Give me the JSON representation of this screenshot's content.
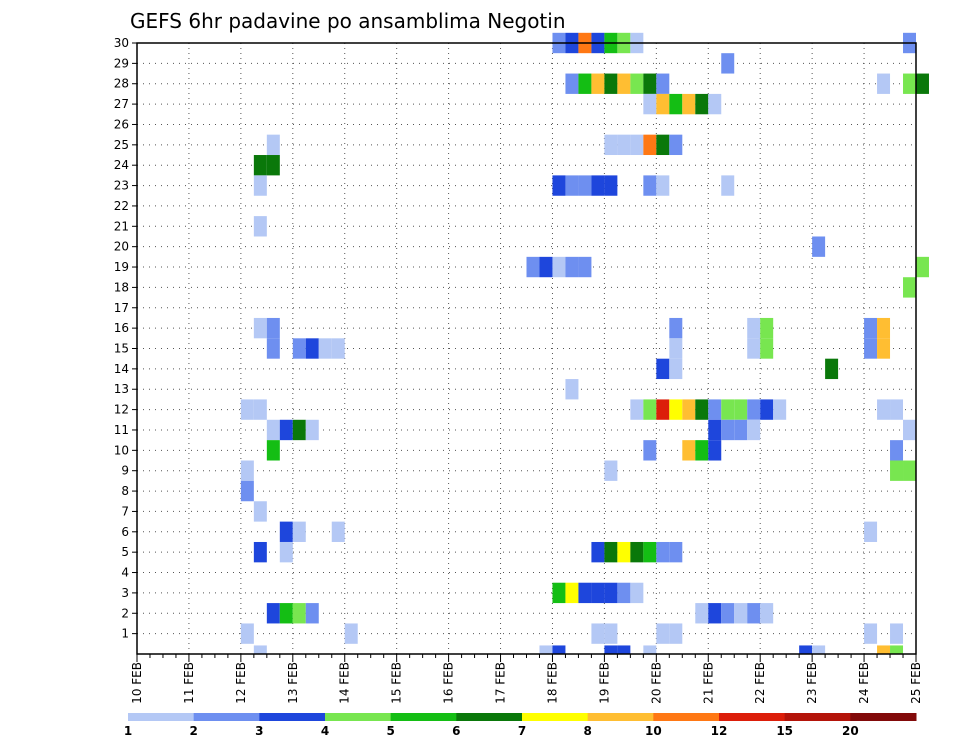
{
  "chart_data": {
    "type": "heatmap",
    "title": "GEFS 6hr padavine po ansamblima Negotin",
    "xlabel": "",
    "ylabel": "",
    "x_tick_labels": [
      "10 FEB",
      "11 FEB",
      "12 FEB",
      "13 FEB",
      "14 FEB",
      "15 FEB",
      "16 FEB",
      "17 FEB",
      "18 FEB",
      "19 FEB",
      "20 FEB",
      "21 FEB",
      "22 FEB",
      "23 FEB",
      "24 FEB",
      "25 FEB"
    ],
    "xlim_days": [
      10,
      25
    ],
    "time_step_hours": 6,
    "y_tick_labels": [
      "1",
      "2",
      "3",
      "4",
      "5",
      "6",
      "7",
      "8",
      "9",
      "10",
      "11",
      "12",
      "13",
      "14",
      "15",
      "16",
      "17",
      "18",
      "19",
      "20",
      "21",
      "22",
      "23",
      "24",
      "25",
      "26",
      "27",
      "28",
      "29",
      "30"
    ],
    "ylim": [
      0,
      30
    ],
    "grid": true,
    "legend_placement": "bottom",
    "colorbar": {
      "colors": [
        "#b4c8f5",
        "#6e8ff0",
        "#1e46dc",
        "#78e650",
        "#14be14",
        "#0a780a",
        "#ffff00",
        "#ffbe32",
        "#ff7814",
        "#dc1e0a",
        "#b4140a",
        "#820a0a"
      ],
      "labels": [
        "1",
        "2",
        "3",
        "4",
        "5",
        "6",
        "7",
        "8",
        "10",
        "12",
        "15",
        "20"
      ]
    },
    "cells": [
      {
        "m": 30,
        "d": 18.0,
        "v": 2
      },
      {
        "m": 30,
        "d": 18.25,
        "v": 3
      },
      {
        "m": 30,
        "d": 18.5,
        "v": 9
      },
      {
        "m": 30,
        "d": 18.75,
        "v": 3
      },
      {
        "m": 30,
        "d": 19.0,
        "v": 5
      },
      {
        "m": 30,
        "d": 19.25,
        "v": 4
      },
      {
        "m": 30,
        "d": 19.5,
        "v": 1
      },
      {
        "m": 30,
        "d": 24.75,
        "v": 2
      },
      {
        "m": 29,
        "d": 21.25,
        "v": 2
      },
      {
        "m": 28,
        "d": 18.25,
        "v": 2
      },
      {
        "m": 28,
        "d": 18.5,
        "v": 5
      },
      {
        "m": 28,
        "d": 18.75,
        "v": 8
      },
      {
        "m": 28,
        "d": 19.0,
        "v": 6
      },
      {
        "m": 28,
        "d": 19.25,
        "v": 8
      },
      {
        "m": 28,
        "d": 19.5,
        "v": 4
      },
      {
        "m": 28,
        "d": 19.75,
        "v": 6
      },
      {
        "m": 28,
        "d": 20.0,
        "v": 2
      },
      {
        "m": 28,
        "d": 24.25,
        "v": 1
      },
      {
        "m": 28,
        "d": 24.75,
        "v": 4
      },
      {
        "m": 28,
        "d": 25.0,
        "v": 6
      },
      {
        "m": 27,
        "d": 19.75,
        "v": 1
      },
      {
        "m": 27,
        "d": 20.0,
        "v": 8
      },
      {
        "m": 27,
        "d": 20.25,
        "v": 5
      },
      {
        "m": 27,
        "d": 20.5,
        "v": 8
      },
      {
        "m": 27,
        "d": 20.75,
        "v": 6
      },
      {
        "m": 27,
        "d": 21.0,
        "v": 1
      },
      {
        "m": 25,
        "d": 12.5,
        "v": 1
      },
      {
        "m": 25,
        "d": 19.0,
        "v": 1
      },
      {
        "m": 25,
        "d": 19.25,
        "v": 1
      },
      {
        "m": 25,
        "d": 19.5,
        "v": 1
      },
      {
        "m": 25,
        "d": 19.75,
        "v": 9
      },
      {
        "m": 25,
        "d": 20.0,
        "v": 6
      },
      {
        "m": 25,
        "d": 20.25,
        "v": 2
      },
      {
        "m": 24,
        "d": 12.25,
        "v": 6
      },
      {
        "m": 24,
        "d": 12.5,
        "v": 6
      },
      {
        "m": 23,
        "d": 12.25,
        "v": 1
      },
      {
        "m": 23,
        "d": 18.0,
        "v": 3
      },
      {
        "m": 23,
        "d": 18.25,
        "v": 2
      },
      {
        "m": 23,
        "d": 18.5,
        "v": 2
      },
      {
        "m": 23,
        "d": 18.75,
        "v": 3
      },
      {
        "m": 23,
        "d": 19.0,
        "v": 3
      },
      {
        "m": 23,
        "d": 19.75,
        "v": 2
      },
      {
        "m": 23,
        "d": 20.0,
        "v": 1
      },
      {
        "m": 23,
        "d": 21.25,
        "v": 1
      },
      {
        "m": 21,
        "d": 12.25,
        "v": 1
      },
      {
        "m": 20,
        "d": 23.0,
        "v": 2
      },
      {
        "m": 19,
        "d": 17.5,
        "v": 2
      },
      {
        "m": 19,
        "d": 17.75,
        "v": 3
      },
      {
        "m": 19,
        "d": 18.0,
        "v": 1
      },
      {
        "m": 19,
        "d": 18.25,
        "v": 2
      },
      {
        "m": 19,
        "d": 18.5,
        "v": 2
      },
      {
        "m": 19,
        "d": 25.0,
        "v": 4
      },
      {
        "m": 18,
        "d": 24.75,
        "v": 4
      },
      {
        "m": 16,
        "d": 12.25,
        "v": 1
      },
      {
        "m": 16,
        "d": 12.5,
        "v": 2
      },
      {
        "m": 16,
        "d": 20.25,
        "v": 2
      },
      {
        "m": 16,
        "d": 21.75,
        "v": 1
      },
      {
        "m": 16,
        "d": 22.0,
        "v": 4
      },
      {
        "m": 16,
        "d": 24.0,
        "v": 2
      },
      {
        "m": 16,
        "d": 24.25,
        "v": 8
      },
      {
        "m": 15,
        "d": 12.5,
        "v": 2
      },
      {
        "m": 15,
        "d": 13.0,
        "v": 2
      },
      {
        "m": 15,
        "d": 13.25,
        "v": 3
      },
      {
        "m": 15,
        "d": 13.5,
        "v": 1
      },
      {
        "m": 15,
        "d": 13.75,
        "v": 1
      },
      {
        "m": 15,
        "d": 20.25,
        "v": 1
      },
      {
        "m": 15,
        "d": 21.75,
        "v": 1
      },
      {
        "m": 15,
        "d": 22.0,
        "v": 4
      },
      {
        "m": 15,
        "d": 24.0,
        "v": 2
      },
      {
        "m": 15,
        "d": 24.25,
        "v": 8
      },
      {
        "m": 14,
        "d": 20.0,
        "v": 3
      },
      {
        "m": 14,
        "d": 20.25,
        "v": 1
      },
      {
        "m": 14,
        "d": 23.25,
        "v": 6
      },
      {
        "m": 13,
        "d": 18.25,
        "v": 1
      },
      {
        "m": 12,
        "d": 12.0,
        "v": 1
      },
      {
        "m": 12,
        "d": 12.25,
        "v": 1
      },
      {
        "m": 12,
        "d": 19.5,
        "v": 1
      },
      {
        "m": 12,
        "d": 19.75,
        "v": 4
      },
      {
        "m": 12,
        "d": 20.0,
        "v": 10
      },
      {
        "m": 12,
        "d": 20.25,
        "v": 7
      },
      {
        "m": 12,
        "d": 20.5,
        "v": 8
      },
      {
        "m": 12,
        "d": 20.75,
        "v": 6
      },
      {
        "m": 12,
        "d": 21.0,
        "v": 2
      },
      {
        "m": 12,
        "d": 21.25,
        "v": 4
      },
      {
        "m": 12,
        "d": 21.5,
        "v": 4
      },
      {
        "m": 12,
        "d": 21.75,
        "v": 2
      },
      {
        "m": 12,
        "d": 22.0,
        "v": 3
      },
      {
        "m": 12,
        "d": 22.25,
        "v": 1
      },
      {
        "m": 12,
        "d": 24.25,
        "v": 1
      },
      {
        "m": 12,
        "d": 24.5,
        "v": 1
      },
      {
        "m": 11,
        "d": 12.5,
        "v": 1
      },
      {
        "m": 11,
        "d": 12.75,
        "v": 3
      },
      {
        "m": 11,
        "d": 13.0,
        "v": 6
      },
      {
        "m": 11,
        "d": 13.25,
        "v": 1
      },
      {
        "m": 11,
        "d": 21.0,
        "v": 3
      },
      {
        "m": 11,
        "d": 21.25,
        "v": 2
      },
      {
        "m": 11,
        "d": 21.5,
        "v": 2
      },
      {
        "m": 11,
        "d": 21.75,
        "v": 1
      },
      {
        "m": 11,
        "d": 24.75,
        "v": 1
      },
      {
        "m": 10,
        "d": 12.5,
        "v": 5
      },
      {
        "m": 10,
        "d": 19.75,
        "v": 2
      },
      {
        "m": 10,
        "d": 20.5,
        "v": 8
      },
      {
        "m": 10,
        "d": 20.75,
        "v": 5
      },
      {
        "m": 10,
        "d": 21.0,
        "v": 3
      },
      {
        "m": 10,
        "d": 24.5,
        "v": 2
      },
      {
        "m": 9,
        "d": 12.0,
        "v": 1
      },
      {
        "m": 9,
        "d": 19.0,
        "v": 1
      },
      {
        "m": 9,
        "d": 24.5,
        "v": 4
      },
      {
        "m": 9,
        "d": 24.75,
        "v": 4
      },
      {
        "m": 8,
        "d": 12.0,
        "v": 2
      },
      {
        "m": 7,
        "d": 12.25,
        "v": 1
      },
      {
        "m": 6,
        "d": 12.75,
        "v": 3
      },
      {
        "m": 6,
        "d": 13.0,
        "v": 1
      },
      {
        "m": 6,
        "d": 13.75,
        "v": 1
      },
      {
        "m": 6,
        "d": 24.0,
        "v": 1
      },
      {
        "m": 5,
        "d": 12.25,
        "v": 3
      },
      {
        "m": 5,
        "d": 12.75,
        "v": 1
      },
      {
        "m": 5,
        "d": 18.75,
        "v": 3
      },
      {
        "m": 5,
        "d": 19.0,
        "v": 6
      },
      {
        "m": 5,
        "d": 19.25,
        "v": 7
      },
      {
        "m": 5,
        "d": 19.5,
        "v": 6
      },
      {
        "m": 5,
        "d": 19.75,
        "v": 5
      },
      {
        "m": 5,
        "d": 20.0,
        "v": 2
      },
      {
        "m": 5,
        "d": 20.25,
        "v": 2
      },
      {
        "m": 3,
        "d": 18.0,
        "v": 5
      },
      {
        "m": 3,
        "d": 18.25,
        "v": 7
      },
      {
        "m": 3,
        "d": 18.5,
        "v": 3
      },
      {
        "m": 3,
        "d": 18.75,
        "v": 3
      },
      {
        "m": 3,
        "d": 19.0,
        "v": 3
      },
      {
        "m": 3,
        "d": 19.25,
        "v": 2
      },
      {
        "m": 3,
        "d": 19.5,
        "v": 1
      },
      {
        "m": 2,
        "d": 12.5,
        "v": 3
      },
      {
        "m": 2,
        "d": 12.75,
        "v": 5
      },
      {
        "m": 2,
        "d": 13.0,
        "v": 4
      },
      {
        "m": 2,
        "d": 13.25,
        "v": 2
      },
      {
        "m": 2,
        "d": 20.75,
        "v": 1
      },
      {
        "m": 2,
        "d": 21.0,
        "v": 3
      },
      {
        "m": 2,
        "d": 21.25,
        "v": 2
      },
      {
        "m": 2,
        "d": 21.5,
        "v": 1
      },
      {
        "m": 2,
        "d": 21.75,
        "v": 2
      },
      {
        "m": 2,
        "d": 22.0,
        "v": 1
      },
      {
        "m": 1,
        "d": 12.0,
        "v": 1
      },
      {
        "m": 1,
        "d": 14.0,
        "v": 1
      },
      {
        "m": 1,
        "d": 18.75,
        "v": 1
      },
      {
        "m": 1,
        "d": 19.0,
        "v": 1
      },
      {
        "m": 1,
        "d": 20.0,
        "v": 1
      },
      {
        "m": 1,
        "d": 20.25,
        "v": 1
      },
      {
        "m": 1,
        "d": 24.0,
        "v": 1
      },
      {
        "m": 1,
        "d": 24.5,
        "v": 1
      },
      {
        "m": 0,
        "d": 12.25,
        "v": 1
      },
      {
        "m": 0,
        "d": 17.75,
        "v": 1
      },
      {
        "m": 0,
        "d": 18.0,
        "v": 3
      },
      {
        "m": 0,
        "d": 19.0,
        "v": 3
      },
      {
        "m": 0,
        "d": 19.25,
        "v": 3
      },
      {
        "m": 0,
        "d": 19.75,
        "v": 1
      },
      {
        "m": 0,
        "d": 22.75,
        "v": 3
      },
      {
        "m": 0,
        "d": 23.0,
        "v": 1
      },
      {
        "m": 0,
        "d": 24.25,
        "v": 8
      },
      {
        "m": 0,
        "d": 24.5,
        "v": 4
      }
    ]
  }
}
